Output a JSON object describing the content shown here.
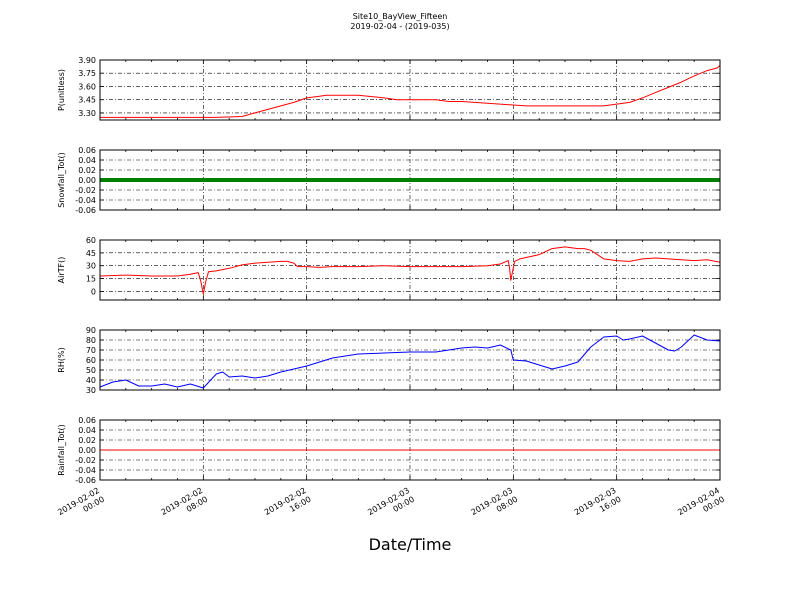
{
  "figure": {
    "title_line1": "Site10_BayView_Fifteen",
    "title_line2": "2019-02-04 - (2019-035)",
    "xlabel": "Date/Time"
  },
  "chart_data": {
    "type": "line",
    "x_range": [
      "2019-02-02 00:00",
      "2019-02-04 00:00"
    ],
    "x_tick_labels": [
      [
        "2019-02-02",
        "00:00"
      ],
      [
        "2019-02-02",
        "08:00"
      ],
      [
        "2019-02-02",
        "16:00"
      ],
      [
        "2019-02-03",
        "00:00"
      ],
      [
        "2019-02-03",
        "08:00"
      ],
      [
        "2019-02-03",
        "16:00"
      ],
      [
        "2019-02-04",
        "00:00"
      ]
    ],
    "x_tick_hours": [
      0,
      8,
      16,
      24,
      32,
      40,
      48
    ],
    "grid": true,
    "panels": [
      {
        "ylabel": "P(unitless)",
        "ylim": [
          3.22,
          3.9
        ],
        "yticks": [
          "3.30",
          "3.45",
          "3.60",
          "3.75",
          "3.90"
        ],
        "ytick_values": [
          3.3,
          3.45,
          3.6,
          3.75,
          3.9
        ],
        "color": "#ff0000",
        "line_width": 1,
        "x": [
          0,
          4,
          9,
          11,
          12,
          14,
          15,
          16,
          17,
          17.5,
          18,
          20,
          22,
          23,
          24,
          26,
          27,
          28,
          30,
          32,
          33,
          33.5,
          34,
          35,
          37,
          39,
          41,
          42,
          43,
          44,
          45,
          46,
          47,
          47.8,
          48
        ],
        "y": [
          3.25,
          3.25,
          3.25,
          3.26,
          3.3,
          3.38,
          3.42,
          3.47,
          3.49,
          3.5,
          3.5,
          3.5,
          3.47,
          3.45,
          3.45,
          3.45,
          3.43,
          3.43,
          3.41,
          3.39,
          3.38,
          3.38,
          3.38,
          3.38,
          3.38,
          3.38,
          3.42,
          3.47,
          3.53,
          3.59,
          3.65,
          3.72,
          3.78,
          3.81,
          3.84
        ]
      },
      {
        "ylabel": "Snowfall_Tot()",
        "ylim": [
          -0.06,
          0.06
        ],
        "yticks": [
          "0.06",
          "0.04",
          "0.02",
          "0.00",
          "-0.02",
          "-0.04",
          "-0.06"
        ],
        "ytick_values": [
          0.06,
          0.04,
          0.02,
          0.0,
          -0.02,
          -0.04,
          -0.06
        ],
        "color": "#008000",
        "line_width": 4,
        "x": [
          0,
          48
        ],
        "y": [
          0,
          0
        ]
      },
      {
        "ylabel": "AirTF()",
        "ylim": [
          -10,
          60
        ],
        "yticks": [
          "60",
          "45",
          "30",
          "15",
          "0"
        ],
        "ytick_values": [
          60,
          45,
          30,
          15,
          0
        ],
        "color": "#ff0000",
        "line_width": 1,
        "x": [
          0,
          2,
          4,
          6,
          7,
          7.6,
          7.8,
          8.0,
          8.2,
          8.4,
          9,
          10,
          11,
          12,
          13,
          14,
          14.5,
          15,
          15.3,
          16,
          17,
          18,
          19,
          20,
          22,
          24,
          26,
          28,
          30,
          31,
          31.6,
          31.7,
          31.8,
          32.1,
          32.5,
          34,
          35,
          36,
          37,
          37.5,
          38,
          39,
          40,
          41,
          42,
          43,
          44,
          46,
          47,
          48
        ],
        "y": [
          18,
          19,
          18,
          18,
          20,
          22,
          12,
          -3,
          12,
          23,
          24,
          27,
          31,
          33,
          34,
          35,
          35,
          33,
          29,
          29,
          28,
          29,
          29,
          29,
          30,
          29,
          29,
          29,
          30,
          32,
          36,
          28,
          13,
          35,
          38,
          43,
          50,
          52,
          50,
          50,
          48,
          38,
          36,
          35,
          38,
          39,
          38,
          36,
          37,
          34
        ]
      },
      {
        "ylabel": "RH(%)",
        "ylim": [
          30,
          90
        ],
        "yticks": [
          "90",
          "80",
          "70",
          "60",
          "50",
          "40",
          "30"
        ],
        "ytick_values": [
          90,
          80,
          70,
          60,
          50,
          40,
          30
        ],
        "color": "#0000ff",
        "line_width": 1,
        "x": [
          0,
          1,
          2,
          3,
          4,
          5,
          6,
          7,
          8,
          9,
          9.5,
          10,
          11,
          12,
          13,
          14,
          15,
          16,
          17,
          18,
          20,
          22,
          24,
          26,
          28,
          29,
          30,
          31,
          31.8,
          32,
          33,
          34,
          35,
          36,
          37,
          38,
          39,
          40,
          40.5,
          41,
          42,
          43,
          44,
          44.5,
          45,
          46,
          47,
          48
        ],
        "y": [
          33,
          38,
          40,
          34,
          34,
          36,
          33,
          36,
          32,
          46,
          48,
          43,
          44,
          42,
          44,
          48,
          51,
          54,
          58,
          62,
          66,
          67,
          68,
          68,
          72,
          73,
          72,
          75,
          70,
          60,
          59,
          55,
          51,
          54,
          58,
          73,
          83,
          84,
          80,
          81,
          84,
          77,
          70,
          69,
          73,
          85,
          80,
          79
        ]
      },
      {
        "ylabel": "Rainfall_Tot()",
        "ylim": [
          -0.06,
          0.06
        ],
        "yticks": [
          "0.06",
          "0.04",
          "0.02",
          "0.00",
          "-0.02",
          "-0.04",
          "-0.06"
        ],
        "ytick_values": [
          0.06,
          0.04,
          0.02,
          0.0,
          -0.02,
          -0.04,
          -0.06
        ],
        "color": "#ff0000",
        "line_width": 1,
        "x": [
          0,
          48
        ],
        "y": [
          0,
          0
        ]
      }
    ]
  }
}
